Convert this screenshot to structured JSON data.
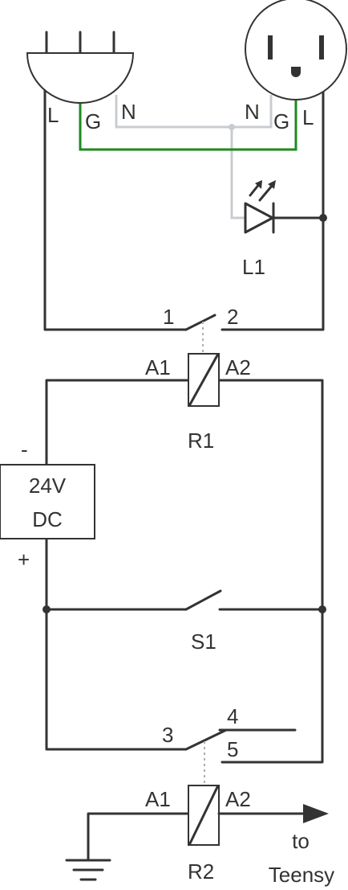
{
  "plug": {
    "line": "L",
    "ground": "G",
    "neutral": "N"
  },
  "outlet": {
    "neutral": "N",
    "ground": "G",
    "line": "L"
  },
  "lamp": {
    "label": "L1"
  },
  "relay1": {
    "label": "R1",
    "coil_a1": "A1",
    "coil_a2": "A2",
    "contact_1": "1",
    "contact_2": "2"
  },
  "power_supply": {
    "line1": "24V",
    "line2": "DC",
    "minus": "-",
    "plus": "+"
  },
  "switch": {
    "label": "S1"
  },
  "relay2": {
    "label": "R2",
    "coil_a1": "A1",
    "coil_a2": "A2",
    "contact_3": "3",
    "contact_4": "4",
    "contact_5": "5"
  },
  "output": {
    "line1": "to",
    "line2": "Teensy"
  },
  "colors": {
    "wire": "#333333",
    "neutral_wire": "#c8ccd0",
    "ground_wire": "#1e8a1e"
  }
}
